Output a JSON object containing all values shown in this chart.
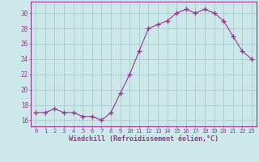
{
  "x": [
    0,
    1,
    2,
    3,
    4,
    5,
    6,
    7,
    8,
    9,
    10,
    11,
    12,
    13,
    14,
    15,
    16,
    17,
    18,
    19,
    20,
    21,
    22,
    23
  ],
  "y": [
    17,
    17,
    17.5,
    17,
    17,
    16.5,
    16.5,
    16,
    17,
    19.5,
    22,
    25,
    28,
    28.5,
    29,
    30,
    30.5,
    30,
    30.5,
    30,
    29,
    27,
    25,
    24
  ],
  "line_color": "#993399",
  "marker": "+",
  "marker_color": "#993399",
  "bg_color": "#cce8e8",
  "grid_color": "#aacccc",
  "xlabel": "Windchill (Refroidissement éolien,°C)",
  "xlabel_color": "#993399",
  "ylabel_values": [
    16,
    18,
    20,
    22,
    24,
    26,
    28,
    30
  ],
  "ylim": [
    15.2,
    31.5
  ],
  "xlim": [
    -0.5,
    23.5
  ],
  "xtick_labels": [
    "0",
    "1",
    "2",
    "3",
    "4",
    "5",
    "6",
    "7",
    "8",
    "9",
    "10",
    "11",
    "12",
    "13",
    "14",
    "15",
    "16",
    "17",
    "18",
    "19",
    "20",
    "21",
    "22",
    "23"
  ],
  "tick_color": "#993399",
  "spine_color": "#993399",
  "axis_bg": "#cce8e8"
}
